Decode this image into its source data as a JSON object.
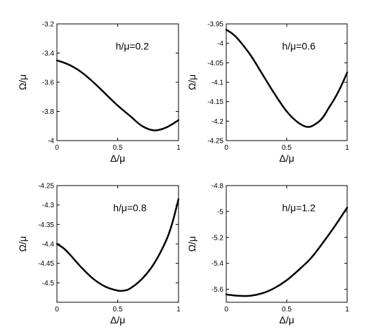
{
  "chart_data": [
    {
      "type": "line",
      "title": "",
      "annotation": "h/μ=0.2",
      "xlabel": "Δ/μ",
      "ylabel": "Ω/μ",
      "xlim": [
        0,
        1
      ],
      "ylim": [
        -4,
        -3.2
      ],
      "xticks": [
        0,
        0.5,
        1
      ],
      "xtick_labels": [
        "0",
        "0.5",
        "1"
      ],
      "yticks": [
        -3.2,
        -3.4,
        -3.6,
        -3.8,
        -4
      ],
      "ytick_labels": [
        "-3.2",
        "-3.4",
        "-3.6",
        "-3.8",
        "-4"
      ],
      "grid": false,
      "series": [
        {
          "x": [
            0,
            0.1,
            0.2,
            0.3,
            0.4,
            0.5,
            0.6,
            0.7,
            0.8,
            0.9,
            1.0
          ],
          "values": [
            -3.45,
            -3.48,
            -3.53,
            -3.6,
            -3.68,
            -3.76,
            -3.83,
            -3.9,
            -3.93,
            -3.91,
            -3.86
          ]
        }
      ]
    },
    {
      "type": "line",
      "title": "",
      "annotation": "h/μ=0.6",
      "xlabel": "Δ/μ",
      "ylabel": "Ω/μ",
      "xlim": [
        0,
        1
      ],
      "ylim": [
        -4.25,
        -3.95
      ],
      "xticks": [
        0,
        0.5,
        1
      ],
      "xtick_labels": [
        "0",
        "0.5",
        "1"
      ],
      "yticks": [
        -3.95,
        -4,
        -4.05,
        -4.1,
        -4.15,
        -4.2,
        -4.25
      ],
      "ytick_labels": [
        "-3.95",
        "-4",
        "-4.05",
        "-4.1",
        "-4.15",
        "-4.2",
        "-4.25"
      ],
      "grid": false,
      "series": [
        {
          "x": [
            0,
            0.05,
            0.1,
            0.2,
            0.3,
            0.4,
            0.5,
            0.6,
            0.68,
            0.75,
            0.8,
            0.85,
            0.9,
            0.95,
            1.0
          ],
          "values": [
            -3.965,
            -3.975,
            -3.99,
            -4.03,
            -4.08,
            -4.13,
            -4.175,
            -4.205,
            -4.215,
            -4.205,
            -4.19,
            -4.165,
            -4.14,
            -4.11,
            -4.075
          ]
        }
      ]
    },
    {
      "type": "line",
      "title": "",
      "annotation": "h/μ=0.8",
      "xlabel": "Δ/μ",
      "ylabel": "Ω/μ",
      "xlim": [
        0,
        1
      ],
      "ylim": [
        -4.55,
        -4.25
      ],
      "xticks": [
        0,
        0.5,
        1
      ],
      "xtick_labels": [
        "0",
        "0.5",
        "1"
      ],
      "yticks": [
        -4.25,
        -4.3,
        -4.35,
        -4.4,
        -4.45,
        -4.5
      ],
      "ytick_labels": [
        "-4.25",
        "-4.3",
        "-4.35",
        "-4.4",
        "-4.45",
        "-4.5"
      ],
      "grid": false,
      "series": [
        {
          "x": [
            0,
            0.05,
            0.1,
            0.2,
            0.3,
            0.4,
            0.5,
            0.55,
            0.6,
            0.7,
            0.8,
            0.9,
            0.95,
            1.0
          ],
          "values": [
            -4.4,
            -4.41,
            -4.425,
            -4.46,
            -4.49,
            -4.51,
            -4.52,
            -4.52,
            -4.515,
            -4.49,
            -4.45,
            -4.39,
            -4.345,
            -4.285
          ]
        }
      ]
    },
    {
      "type": "line",
      "title": "",
      "annotation": "h/μ=1.2",
      "xlabel": "Δ/μ",
      "ylabel": "Ω/μ",
      "xlim": [
        0,
        1
      ],
      "ylim": [
        -5.7,
        -4.8
      ],
      "xticks": [
        0,
        0.5,
        1
      ],
      "xtick_labels": [
        "0",
        "0.5",
        "1"
      ],
      "yticks": [
        -4.8,
        -5,
        -5.2,
        -5.4,
        -5.6
      ],
      "ytick_labels": [
        "-4.8",
        "-5",
        "-5.2",
        "-5.4",
        "-5.6"
      ],
      "grid": false,
      "series": [
        {
          "x": [
            0,
            0.1,
            0.2,
            0.3,
            0.4,
            0.5,
            0.6,
            0.7,
            0.8,
            0.9,
            1.0
          ],
          "values": [
            -5.64,
            -5.65,
            -5.65,
            -5.63,
            -5.59,
            -5.53,
            -5.45,
            -5.36,
            -5.24,
            -5.11,
            -4.97
          ]
        }
      ]
    }
  ]
}
